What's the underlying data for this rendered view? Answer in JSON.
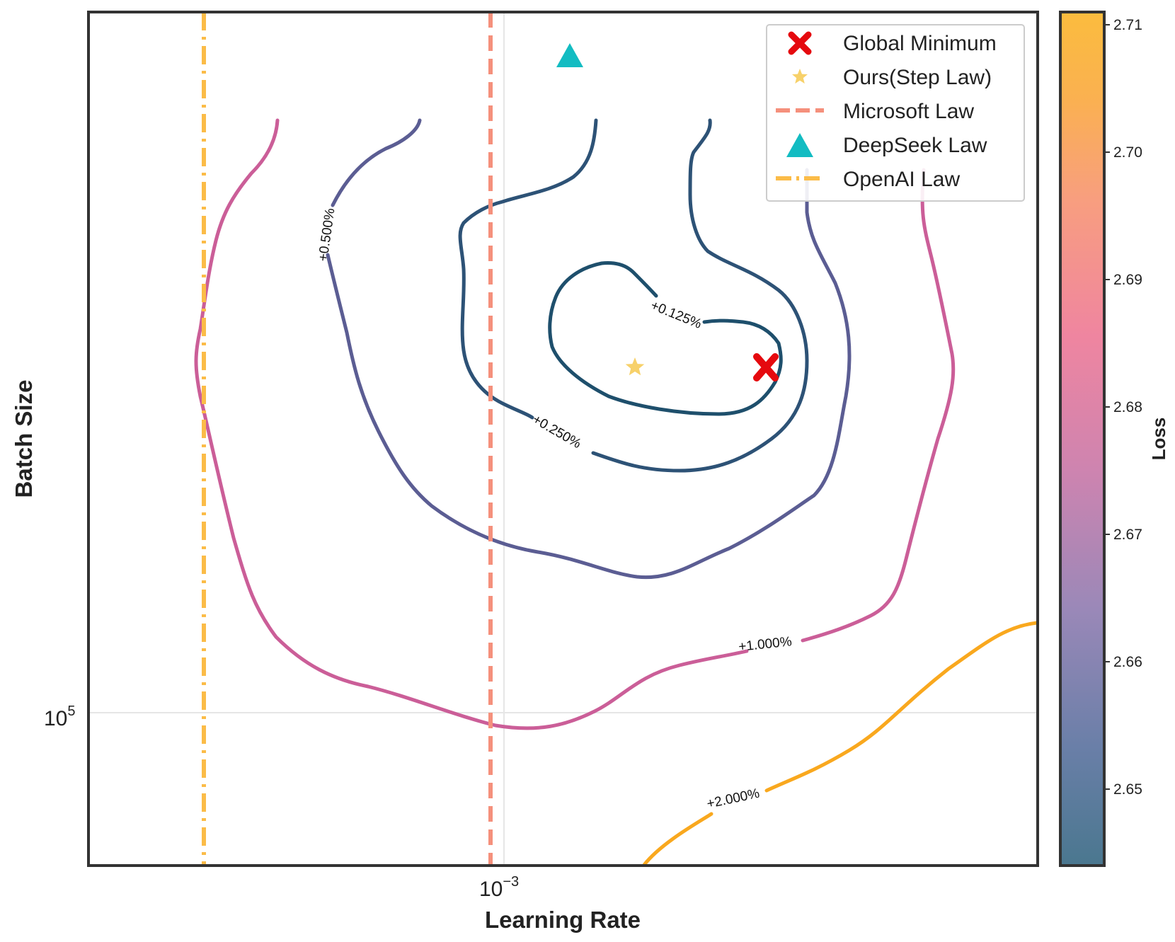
{
  "chart_data": {
    "type": "contour",
    "xlabel": "Learning Rate",
    "ylabel": "Batch Size",
    "xscale": "log",
    "yscale": "log",
    "x_tick_labels": [
      {
        "base": "10",
        "exp": "−3"
      }
    ],
    "y_tick_labels": [
      {
        "base": "10",
        "exp": "5"
      }
    ],
    "colorbar": {
      "label": "Loss",
      "range": [
        2.644,
        2.711
      ],
      "ticks": [
        "2.65",
        "2.66",
        "2.67",
        "2.68",
        "2.69",
        "2.70",
        "2.71"
      ],
      "tick_values": [
        2.65,
        2.66,
        2.67,
        2.68,
        2.69,
        2.7,
        2.71
      ],
      "colors": [
        "#4a778f",
        "#6a7fa8",
        "#9a88b8",
        "#cd84b0",
        "#ef85a0",
        "#f89e7f",
        "#fab150",
        "#fbbc3e"
      ]
    },
    "contour_levels": [
      {
        "label": "+0.125%",
        "color": "#1e4f6c"
      },
      {
        "label": "+0.250%",
        "color": "#2d5276"
      },
      {
        "label": "+0.500%",
        "color": "#5b5d93"
      },
      {
        "label": "+1.000%",
        "color": "#cb5e98"
      },
      {
        "label": "+2.000%",
        "color": "#f9a81e"
      }
    ],
    "legend": {
      "position": "upper right",
      "items": [
        {
          "label": "Global Minimum",
          "marker": "x",
          "color": "#e5090e"
        },
        {
          "label": "Ours(Step Law)",
          "marker": "star",
          "color": "#f7d16a"
        },
        {
          "label": "Microsoft Law",
          "marker": "dashed-line",
          "color": "#f5907c"
        },
        {
          "label": "DeepSeek Law",
          "marker": "triangle",
          "color": "#13bcc2"
        },
        {
          "label": "OpenAI Law",
          "marker": "dashdot-line",
          "color": "#fbbc48"
        }
      ]
    },
    "grid": true
  }
}
